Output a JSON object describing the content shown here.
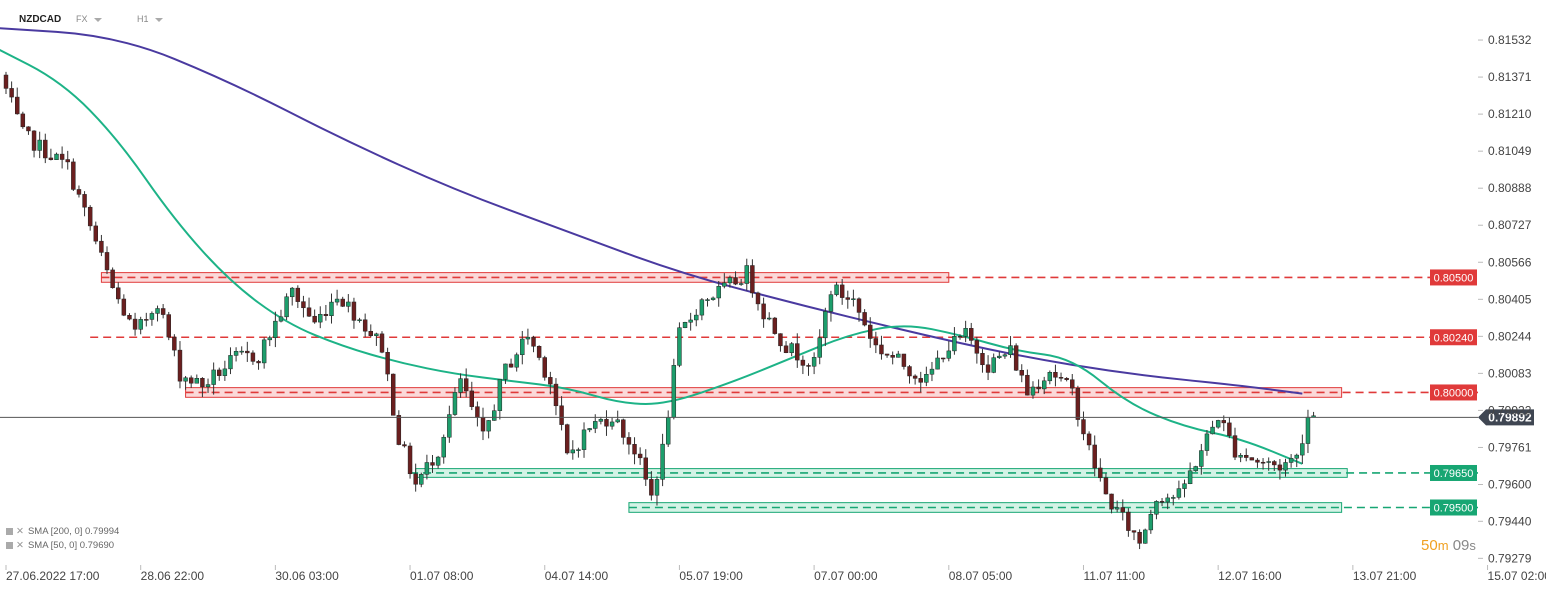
{
  "header": {
    "symbol": "NZDCAD",
    "market": "FX",
    "timeframe": "H1"
  },
  "legend": [
    {
      "label": "SMA [200, 0] 0.79994"
    },
    {
      "label": "SMA [50, 0] 0.79690"
    }
  ],
  "countdown": {
    "minutes": "50",
    "m_label": "m",
    "seconds": "09",
    "s_label": "s"
  },
  "colors": {
    "bull": "#1d9e6c",
    "bear": "#6b1f1f",
    "resistance": "#e03a3a",
    "support": "#17a673",
    "sma200": "#4a3aa0",
    "sma50": "#1db387"
  },
  "chart_data": {
    "type": "candlestick",
    "y_axis": {
      "min": 0.7925,
      "max": 0.8168,
      "ticks": [
        "0.81532",
        "0.81371",
        "0.81210",
        "0.81049",
        "0.80888",
        "0.80727",
        "0.80566",
        "0.80405",
        "0.80244",
        "0.80083",
        "0.79922",
        "0.79761",
        "0.79600",
        "0.79440",
        "0.79279"
      ]
    },
    "x_axis": {
      "index_range": [
        0,
        240
      ],
      "ticks": [
        {
          "i": 0,
          "label": "27.06.2022 17:00"
        },
        {
          "i": 24,
          "label": "28.06 22:00"
        },
        {
          "i": 48,
          "label": "30.06 03:00"
        },
        {
          "i": 72,
          "label": "01.07 08:00"
        },
        {
          "i": 96,
          "label": "04.07 14:00"
        },
        {
          "i": 120,
          "label": "05.07 19:00"
        },
        {
          "i": 144,
          "label": "07.07 00:00"
        },
        {
          "i": 168,
          "label": "08.07 05:00"
        },
        {
          "i": 192,
          "label": "11.07 11:00"
        },
        {
          "i": 216,
          "label": "12.07 16:00"
        },
        {
          "i": 240,
          "label": "13.07 21:00"
        },
        {
          "i": 264,
          "label": "15.07 02:00"
        }
      ]
    },
    "current_price": {
      "value": 0.79892,
      "label": "0.79892"
    },
    "levels": [
      {
        "value": 0.805,
        "label": "0.80500",
        "kind": "resistance",
        "zone": [
          0.80479,
          0.80521
        ],
        "zone_i": [
          17,
          168
        ]
      },
      {
        "value": 0.8024,
        "label": "0.80240",
        "kind": "resistance"
      },
      {
        "value": 0.8,
        "label": "0.80000",
        "kind": "resistance",
        "zone": [
          0.79979,
          0.80021
        ],
        "zone_i": [
          32,
          238
        ]
      },
      {
        "value": 0.7965,
        "label": "0.79650",
        "kind": "support",
        "zone": [
          0.79631,
          0.79669
        ],
        "zone_i": [
          73,
          239
        ]
      },
      {
        "value": 0.795,
        "label": "0.79500",
        "kind": "support",
        "zone": [
          0.79479,
          0.79521
        ],
        "zone_i": [
          111,
          238
        ]
      }
    ],
    "anchors": [
      [
        0,
        0.8138
      ],
      [
        4,
        0.8112
      ],
      [
        8,
        0.8105
      ],
      [
        12,
        0.8098
      ],
      [
        16,
        0.8072
      ],
      [
        20,
        0.8045
      ],
      [
        24,
        0.8025
      ],
      [
        28,
        0.804
      ],
      [
        32,
        0.8008
      ],
      [
        36,
        0.8003
      ],
      [
        42,
        0.8015
      ],
      [
        46,
        0.8016
      ],
      [
        52,
        0.8044
      ],
      [
        56,
        0.803
      ],
      [
        60,
        0.8043
      ],
      [
        64,
        0.8032
      ],
      [
        68,
        0.802
      ],
      [
        71,
        0.798
      ],
      [
        74,
        0.796
      ],
      [
        78,
        0.7975
      ],
      [
        82,
        0.8005
      ],
      [
        86,
        0.798
      ],
      [
        90,
        0.801
      ],
      [
        94,
        0.8025
      ],
      [
        98,
        0.8005
      ],
      [
        101,
        0.7972
      ],
      [
        105,
        0.7985
      ],
      [
        109,
        0.799
      ],
      [
        113,
        0.7975
      ],
      [
        116,
        0.7955
      ],
      [
        118,
        0.7975
      ],
      [
        121,
        0.8025
      ],
      [
        125,
        0.804
      ],
      [
        129,
        0.8045
      ],
      [
        133,
        0.8052
      ],
      [
        136,
        0.8035
      ],
      [
        140,
        0.802
      ],
      [
        145,
        0.8012
      ],
      [
        148,
        0.8045
      ],
      [
        152,
        0.804
      ],
      [
        156,
        0.802
      ],
      [
        161,
        0.8012
      ],
      [
        165,
        0.8005
      ],
      [
        168,
        0.8018
      ],
      [
        172,
        0.8025
      ],
      [
        176,
        0.8012
      ],
      [
        180,
        0.8018
      ],
      [
        183,
        0.8
      ],
      [
        187,
        0.801
      ],
      [
        191,
        0.8
      ],
      [
        194,
        0.7975
      ],
      [
        197,
        0.7955
      ],
      [
        200,
        0.7945
      ],
      [
        203,
        0.7935
      ],
      [
        206,
        0.7955
      ],
      [
        210,
        0.7955
      ],
      [
        214,
        0.7975
      ],
      [
        217,
        0.799
      ],
      [
        220,
        0.7975
      ],
      [
        224,
        0.797
      ],
      [
        228,
        0.7968
      ],
      [
        231,
        0.7972
      ],
      [
        233,
        0.799
      ]
    ],
    "sma200_points": [
      [
        -2,
        0.81585
      ],
      [
        20,
        0.8155
      ],
      [
        40,
        0.8135
      ],
      [
        60,
        0.811
      ],
      [
        80,
        0.8088
      ],
      [
        100,
        0.807
      ],
      [
        120,
        0.8052
      ],
      [
        140,
        0.8039
      ],
      [
        160,
        0.8027
      ],
      [
        180,
        0.8016
      ],
      [
        200,
        0.8008
      ],
      [
        220,
        0.8003
      ],
      [
        231,
        0.79995
      ]
    ],
    "sma50_points": [
      [
        -2,
        0.815
      ],
      [
        10,
        0.8135
      ],
      [
        20,
        0.811
      ],
      [
        30,
        0.8075
      ],
      [
        40,
        0.8048
      ],
      [
        50,
        0.803
      ],
      [
        60,
        0.802
      ],
      [
        70,
        0.8013
      ],
      [
        80,
        0.8008
      ],
      [
        90,
        0.8005
      ],
      [
        100,
        0.8002
      ],
      [
        110,
        0.7995
      ],
      [
        118,
        0.7995
      ],
      [
        130,
        0.8005
      ],
      [
        140,
        0.8015
      ],
      [
        150,
        0.8025
      ],
      [
        160,
        0.803
      ],
      [
        170,
        0.8025
      ],
      [
        180,
        0.8018
      ],
      [
        190,
        0.8015
      ],
      [
        200,
        0.7995
      ],
      [
        210,
        0.7985
      ],
      [
        220,
        0.798
      ],
      [
        231,
        0.7969
      ]
    ]
  }
}
